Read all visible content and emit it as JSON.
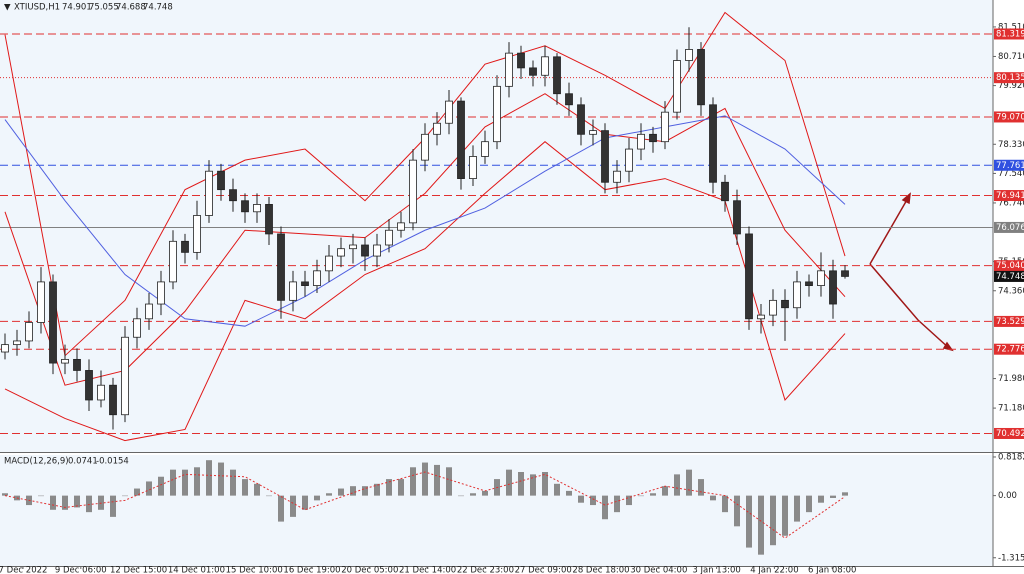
{
  "chart_data": {
    "type": "candlestick",
    "symbol": "XTIUSD,H1",
    "ylim": [
      69.99,
      82.24
    ],
    "yticks": [
      {
        "value": 81.51,
        "label": "81.510"
      },
      {
        "value": 80.71,
        "label": "80.710"
      },
      {
        "value": 79.92,
        "label": "79.920"
      },
      {
        "value": 78.33,
        "label": "78.330"
      },
      {
        "value": 77.54,
        "label": "77.540"
      },
      {
        "value": 76.74,
        "label": "76.740"
      },
      {
        "value": 75.15,
        "label": "75.150"
      },
      {
        "value": 74.36,
        "label": "74.360"
      },
      {
        "value": 71.98,
        "label": "71.980"
      },
      {
        "value": 71.18,
        "label": "71.180"
      }
    ],
    "x_labels": [
      "7 Dec 2022",
      "9 Dec 06:00",
      "12 Dec 15:00",
      "14 Dec 01:00",
      "15 Dec 10:00",
      "16 Dec 19:00",
      "20 Dec 05:00",
      "21 Dec 14:00",
      "22 Dec 23:00",
      "27 Dec 09:00",
      "28 Dec 18:00",
      "30 Dec 04:00",
      "3 Jan 13:00",
      "4 Jan 22:00",
      "6 Jan 08:00"
    ],
    "candles": [
      [
        72.7,
        73.2,
        72.5,
        72.9
      ],
      [
        72.9,
        73.3,
        72.6,
        73.0
      ],
      [
        73.0,
        73.8,
        72.8,
        73.5
      ],
      [
        73.5,
        75.0,
        73.2,
        74.6
      ],
      [
        74.6,
        74.8,
        72.1,
        72.4
      ],
      [
        72.4,
        72.9,
        72.1,
        72.5
      ],
      [
        72.5,
        72.8,
        71.9,
        72.2
      ],
      [
        72.2,
        72.5,
        71.1,
        71.4
      ],
      [
        71.4,
        72.2,
        71.2,
        71.8
      ],
      [
        71.8,
        72.0,
        70.6,
        71.0
      ],
      [
        71.0,
        73.4,
        70.8,
        73.1
      ],
      [
        73.1,
        73.9,
        72.8,
        73.6
      ],
      [
        73.6,
        74.3,
        73.3,
        74.0
      ],
      [
        74.0,
        74.9,
        73.7,
        74.6
      ],
      [
        74.6,
        76.0,
        74.4,
        75.7
      ],
      [
        75.7,
        75.9,
        75.1,
        75.4
      ],
      [
        75.4,
        76.8,
        75.2,
        76.4
      ],
      [
        76.4,
        77.9,
        76.2,
        77.6
      ],
      [
        77.6,
        77.8,
        76.8,
        77.1
      ],
      [
        77.1,
        77.4,
        76.5,
        76.8
      ],
      [
        76.8,
        77.0,
        76.2,
        76.5
      ],
      [
        76.5,
        77.0,
        76.2,
        76.7
      ],
      [
        76.7,
        76.9,
        75.6,
        75.9
      ],
      [
        75.9,
        76.1,
        73.6,
        74.1
      ],
      [
        74.1,
        74.9,
        73.8,
        74.6
      ],
      [
        74.6,
        74.9,
        74.2,
        74.5
      ],
      [
        74.5,
        75.2,
        74.3,
        74.9
      ],
      [
        74.9,
        75.6,
        74.6,
        75.3
      ],
      [
        75.3,
        75.8,
        75.0,
        75.5
      ],
      [
        75.5,
        75.9,
        75.1,
        75.6
      ],
      [
        75.6,
        75.8,
        74.9,
        75.3
      ],
      [
        75.3,
        75.9,
        75.0,
        75.6
      ],
      [
        75.6,
        76.3,
        75.4,
        76.0
      ],
      [
        76.0,
        76.5,
        75.8,
        76.2
      ],
      [
        76.2,
        78.2,
        76.0,
        77.9
      ],
      [
        77.9,
        78.9,
        77.6,
        78.6
      ],
      [
        78.6,
        79.2,
        78.3,
        78.9
      ],
      [
        78.9,
        79.8,
        78.6,
        79.5
      ],
      [
        79.5,
        79.6,
        77.1,
        77.4
      ],
      [
        77.4,
        78.3,
        77.2,
        78.0
      ],
      [
        78.0,
        78.7,
        77.8,
        78.4
      ],
      [
        78.4,
        80.2,
        78.2,
        79.9
      ],
      [
        79.9,
        81.1,
        79.6,
        80.8
      ],
      [
        80.8,
        81.0,
        80.1,
        80.4
      ],
      [
        80.4,
        80.6,
        79.9,
        80.2
      ],
      [
        80.2,
        81.0,
        79.9,
        80.7
      ],
      [
        80.7,
        80.8,
        79.4,
        79.7
      ],
      [
        79.7,
        80.0,
        79.1,
        79.4
      ],
      [
        79.4,
        79.6,
        78.3,
        78.6
      ],
      [
        78.6,
        79.0,
        78.3,
        78.7
      ],
      [
        78.7,
        78.9,
        77.0,
        77.3
      ],
      [
        77.3,
        77.9,
        77.0,
        77.6
      ],
      [
        77.6,
        78.5,
        77.3,
        78.2
      ],
      [
        78.2,
        78.9,
        77.9,
        78.6
      ],
      [
        78.6,
        78.8,
        78.1,
        78.4
      ],
      [
        78.4,
        79.5,
        78.2,
        79.2
      ],
      [
        79.2,
        80.9,
        79.0,
        80.6
      ],
      [
        80.6,
        81.5,
        80.3,
        80.9
      ],
      [
        80.9,
        81.1,
        79.1,
        79.4
      ],
      [
        79.4,
        79.6,
        77.0,
        77.3
      ],
      [
        77.3,
        77.5,
        76.5,
        76.8
      ],
      [
        76.8,
        77.1,
        75.6,
        75.9
      ],
      [
        75.9,
        76.1,
        73.3,
        73.6
      ],
      [
        73.6,
        74.0,
        73.2,
        73.7
      ],
      [
        73.7,
        74.4,
        73.4,
        74.1
      ],
      [
        74.1,
        74.4,
        73.0,
        73.9
      ],
      [
        73.9,
        74.9,
        73.6,
        74.6
      ],
      [
        74.6,
        74.8,
        74.2,
        74.5
      ],
      [
        74.5,
        75.4,
        74.2,
        74.9
      ],
      [
        74.9,
        75.2,
        73.6,
        74.0
      ],
      [
        74.901,
        75.055,
        74.688,
        74.748
      ]
    ],
    "lines": [
      {
        "color": "#e01818",
        "values": [
          81.3,
          72.6,
          74.1,
          77.1,
          77.9,
          78.2,
          76.8,
          78.5,
          80.5,
          81.0,
          80.2,
          79.3,
          81.9,
          80.6,
          75.3
        ]
      },
      {
        "color": "#e01818",
        "values": [
          76.5,
          71.8,
          72.2,
          73.8,
          76.0,
          75.9,
          75.8,
          77.0,
          78.8,
          79.7,
          78.6,
          78.4,
          79.3,
          76.0,
          74.2
        ]
      },
      {
        "color": "#e01818",
        "values": [
          71.7,
          70.9,
          70.3,
          70.6,
          74.1,
          73.6,
          74.8,
          75.5,
          77.0,
          78.4,
          77.1,
          77.4,
          76.8,
          71.4,
          73.2
        ]
      },
      {
        "color": "#5060e0",
        "values": [
          79.0,
          76.8,
          74.8,
          73.6,
          73.4,
          74.2,
          75.2,
          76.0,
          76.6,
          77.6,
          78.5,
          78.8,
          79.1,
          78.2,
          76.7
        ]
      }
    ],
    "levels": [
      {
        "price": 81.319,
        "color": "#e03030",
        "style": "dashed"
      },
      {
        "price": 80.135,
        "color": "#e03030",
        "style": "dotted"
      },
      {
        "price": 79.07,
        "label": "79.070",
        "color": "#e03030",
        "style": "dashed"
      },
      {
        "price": 77.761,
        "color": "#3050e0",
        "style": "dashed"
      },
      {
        "price": 76.941,
        "color": "#e03030",
        "style": "dashed"
      },
      {
        "price": 76.076,
        "color": "#808080",
        "style": "solid"
      },
      {
        "price": 75.04,
        "label": "75.040",
        "color": "#e03030",
        "style": "dashed"
      },
      {
        "price": 74.748,
        "color": "#111111",
        "style": "none"
      },
      {
        "price": 73.529,
        "color": "#e03030",
        "style": "dashed"
      },
      {
        "price": 72.776,
        "color": "#e03030",
        "style": "dashed"
      },
      {
        "price": 70.492,
        "color": "#e03030",
        "style": "dashed"
      }
    ],
    "macd": {
      "title": "MACD(12,26,9)",
      "macd_value": 0.0741,
      "signal_value": -0.0154,
      "ylim": [
        -1.49,
        0.86
      ],
      "yticks": [
        0.8182,
        {
          "value": 0,
          "label": "0.00"
        },
        -1.3154
      ],
      "histogram": [
        0.05,
        -0.1,
        -0.2,
        0.0,
        -0.3,
        -0.3,
        -0.25,
        -0.35,
        -0.3,
        -0.45,
        0.0,
        0.15,
        0.3,
        0.4,
        0.55,
        0.55,
        0.6,
        0.75,
        0.7,
        0.55,
        0.35,
        0.25,
        0.0,
        -0.55,
        -0.45,
        -0.3,
        -0.1,
        0.05,
        0.15,
        0.2,
        0.2,
        0.25,
        0.35,
        0.35,
        0.6,
        0.7,
        0.65,
        0.6,
        0.0,
        0.05,
        0.1,
        0.35,
        0.55,
        0.5,
        0.45,
        0.5,
        0.25,
        0.1,
        -0.15,
        -0.2,
        -0.5,
        -0.35,
        -0.2,
        0.0,
        0.05,
        0.2,
        0.45,
        0.55,
        0.35,
        -0.1,
        -0.35,
        -0.65,
        -1.1,
        -1.25,
        -1.05,
        -0.85,
        -0.55,
        -0.35,
        -0.15,
        -0.05,
        0.07
      ],
      "hist_color": "#8a8a8a",
      "signal": [
        0.0,
        -0.25,
        -0.1,
        0.45,
        0.4,
        -0.3,
        0.15,
        0.5,
        0.1,
        0.45,
        -0.2,
        0.2,
        0.0,
        -0.9,
        -0.02
      ],
      "signal_color": "#e03030"
    }
  }
}
